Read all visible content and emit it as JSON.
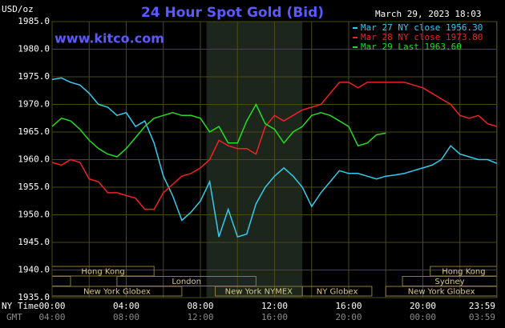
{
  "chart_data": {
    "type": "line",
    "title": "24 Hour Spot Gold (Bid)",
    "unit_label": "USD/oz",
    "timestamp": "March 29, 2023 18:03",
    "watermark": "www.kitco.com",
    "x_row_label": "NY Time",
    "x2_row_label": "GMT",
    "x": [
      0,
      0.5,
      1,
      1.5,
      2,
      2.5,
      3,
      3.5,
      4,
      4.5,
      5,
      5.5,
      6,
      6.5,
      7,
      7.5,
      8,
      8.5,
      9,
      9.5,
      10,
      10.5,
      11,
      11.5,
      12,
      12.5,
      13,
      13.5,
      14,
      14.5,
      15,
      15.5,
      16,
      16.5,
      17,
      17.5,
      18,
      18.5,
      19,
      19.5,
      20,
      20.5,
      21,
      21.5,
      22,
      22.5,
      23,
      23.5,
      24
    ],
    "xlim": [
      0,
      24
    ],
    "xticks": [
      {
        "value": 0,
        "label": "00:00"
      },
      {
        "value": 4,
        "label": "04:00"
      },
      {
        "value": 8,
        "label": "08:00"
      },
      {
        "value": 12,
        "label": "12:00"
      },
      {
        "value": 16,
        "label": "16:00"
      },
      {
        "value": 20,
        "label": "20:00"
      },
      {
        "value": 23.983,
        "label": "23:59"
      }
    ],
    "x2tick_labels": [
      "04:00",
      "08:00",
      "12:00",
      "16:00",
      "20:00",
      "00:00",
      "03:59"
    ],
    "x_minor_ticks": [
      2,
      6,
      10,
      14,
      18,
      22
    ],
    "ylim": [
      1935,
      1985
    ],
    "yticks": [
      {
        "value": 1935,
        "label": "1935.0"
      },
      {
        "value": 1940,
        "label": "1940.0"
      },
      {
        "value": 1945,
        "label": "1945.0"
      },
      {
        "value": 1950,
        "label": "1950.0"
      },
      {
        "value": 1955,
        "label": "1955.0"
      },
      {
        "value": 1960,
        "label": "1960.0"
      },
      {
        "value": 1965,
        "label": "1965.0"
      },
      {
        "value": 1970,
        "label": "1970.0"
      },
      {
        "value": 1975,
        "label": "1975.0"
      },
      {
        "value": 1980,
        "label": "1980.0"
      },
      {
        "value": 1985,
        "label": "1985.0"
      }
    ],
    "grid": true,
    "legend": "top-right",
    "highlight": {
      "start": 8.33,
      "end": 13.5,
      "color": "#1c261c"
    },
    "sessions": [
      {
        "label": "Hong Kong",
        "start": 0,
        "end": 5.5,
        "row": 0
      },
      {
        "label": "London",
        "start": 3.5,
        "end": 11,
        "row": 1
      },
      {
        "label": "New York Globex",
        "start": 0,
        "end": 7,
        "row": 2
      },
      {
        "label": "New York NYMEX",
        "start": 8.8,
        "end": 13.5,
        "row": 2
      },
      {
        "label": "NY Globex",
        "start": 13.5,
        "end": 17.25,
        "row": 2
      },
      {
        "label": "Hong Kong",
        "start": 20.4,
        "end": 24,
        "row": 0
      },
      {
        "label": "Sydney",
        "start": 18.9,
        "end": 24,
        "row": 1
      },
      {
        "label": "New York Globex",
        "start": 18,
        "end": 24,
        "row": 2
      }
    ],
    "series": [
      {
        "name": "Mar 27 NY close 1956.30",
        "color": "#33ccee",
        "values": [
          1974.5,
          1974.8,
          1974,
          1973.5,
          1972,
          1970,
          1969.5,
          1968,
          1968.5,
          1966,
          1967,
          1963,
          1957,
          1953.5,
          1949,
          1950.5,
          1952.5,
          1956,
          1946,
          1951,
          1946,
          1946.5,
          1952,
          1955,
          1957,
          1958.5,
          1957,
          1955,
          1951.5,
          1954,
          1956,
          1958,
          1957.5,
          1957.5,
          1957,
          1956.5,
          1957,
          1957.2,
          1957.5,
          1958,
          1958.5,
          1959,
          1960,
          1962.5,
          1961,
          1960.5,
          1960,
          1960,
          1959.3
        ]
      },
      {
        "name": "Mar 28 NY close 1973.80",
        "color": "#ee2222",
        "values": [
          1959.5,
          1959,
          1960,
          1959.5,
          1956.5,
          1956,
          1954,
          1954,
          1953.5,
          1953,
          1951,
          1951,
          1954,
          1955.5,
          1957,
          1957.5,
          1958.5,
          1960,
          1963.5,
          1962.5,
          1962,
          1962,
          1961,
          1966,
          1968,
          1967,
          1968,
          1969,
          1969.5,
          1970,
          1972,
          1974,
          1974,
          1973,
          1974,
          1974,
          1974,
          1974,
          1974,
          1973.5,
          1973,
          1972,
          1971,
          1970,
          1968,
          1967.5,
          1968,
          1966.5,
          1966
        ]
      },
      {
        "name": "Mar 29 Last 1963.60",
        "color": "#22dd22",
        "values": [
          1966,
          1967.5,
          1967,
          1965.5,
          1963.5,
          1962,
          1961,
          1960.5,
          1962,
          1964,
          1966,
          1967.5,
          1968,
          1968.5,
          1968,
          1968,
          1967.5,
          1965,
          1966,
          1963,
          1963,
          1967,
          1970,
          1966.5,
          1965.5,
          1963,
          1965,
          1966,
          1968,
          1968.5,
          1968,
          1967,
          1966,
          1962.5,
          1963,
          1964.5,
          1964.8,
          null,
          null,
          null,
          null,
          null,
          null,
          null,
          null,
          null,
          null,
          null,
          null
        ]
      }
    ]
  }
}
